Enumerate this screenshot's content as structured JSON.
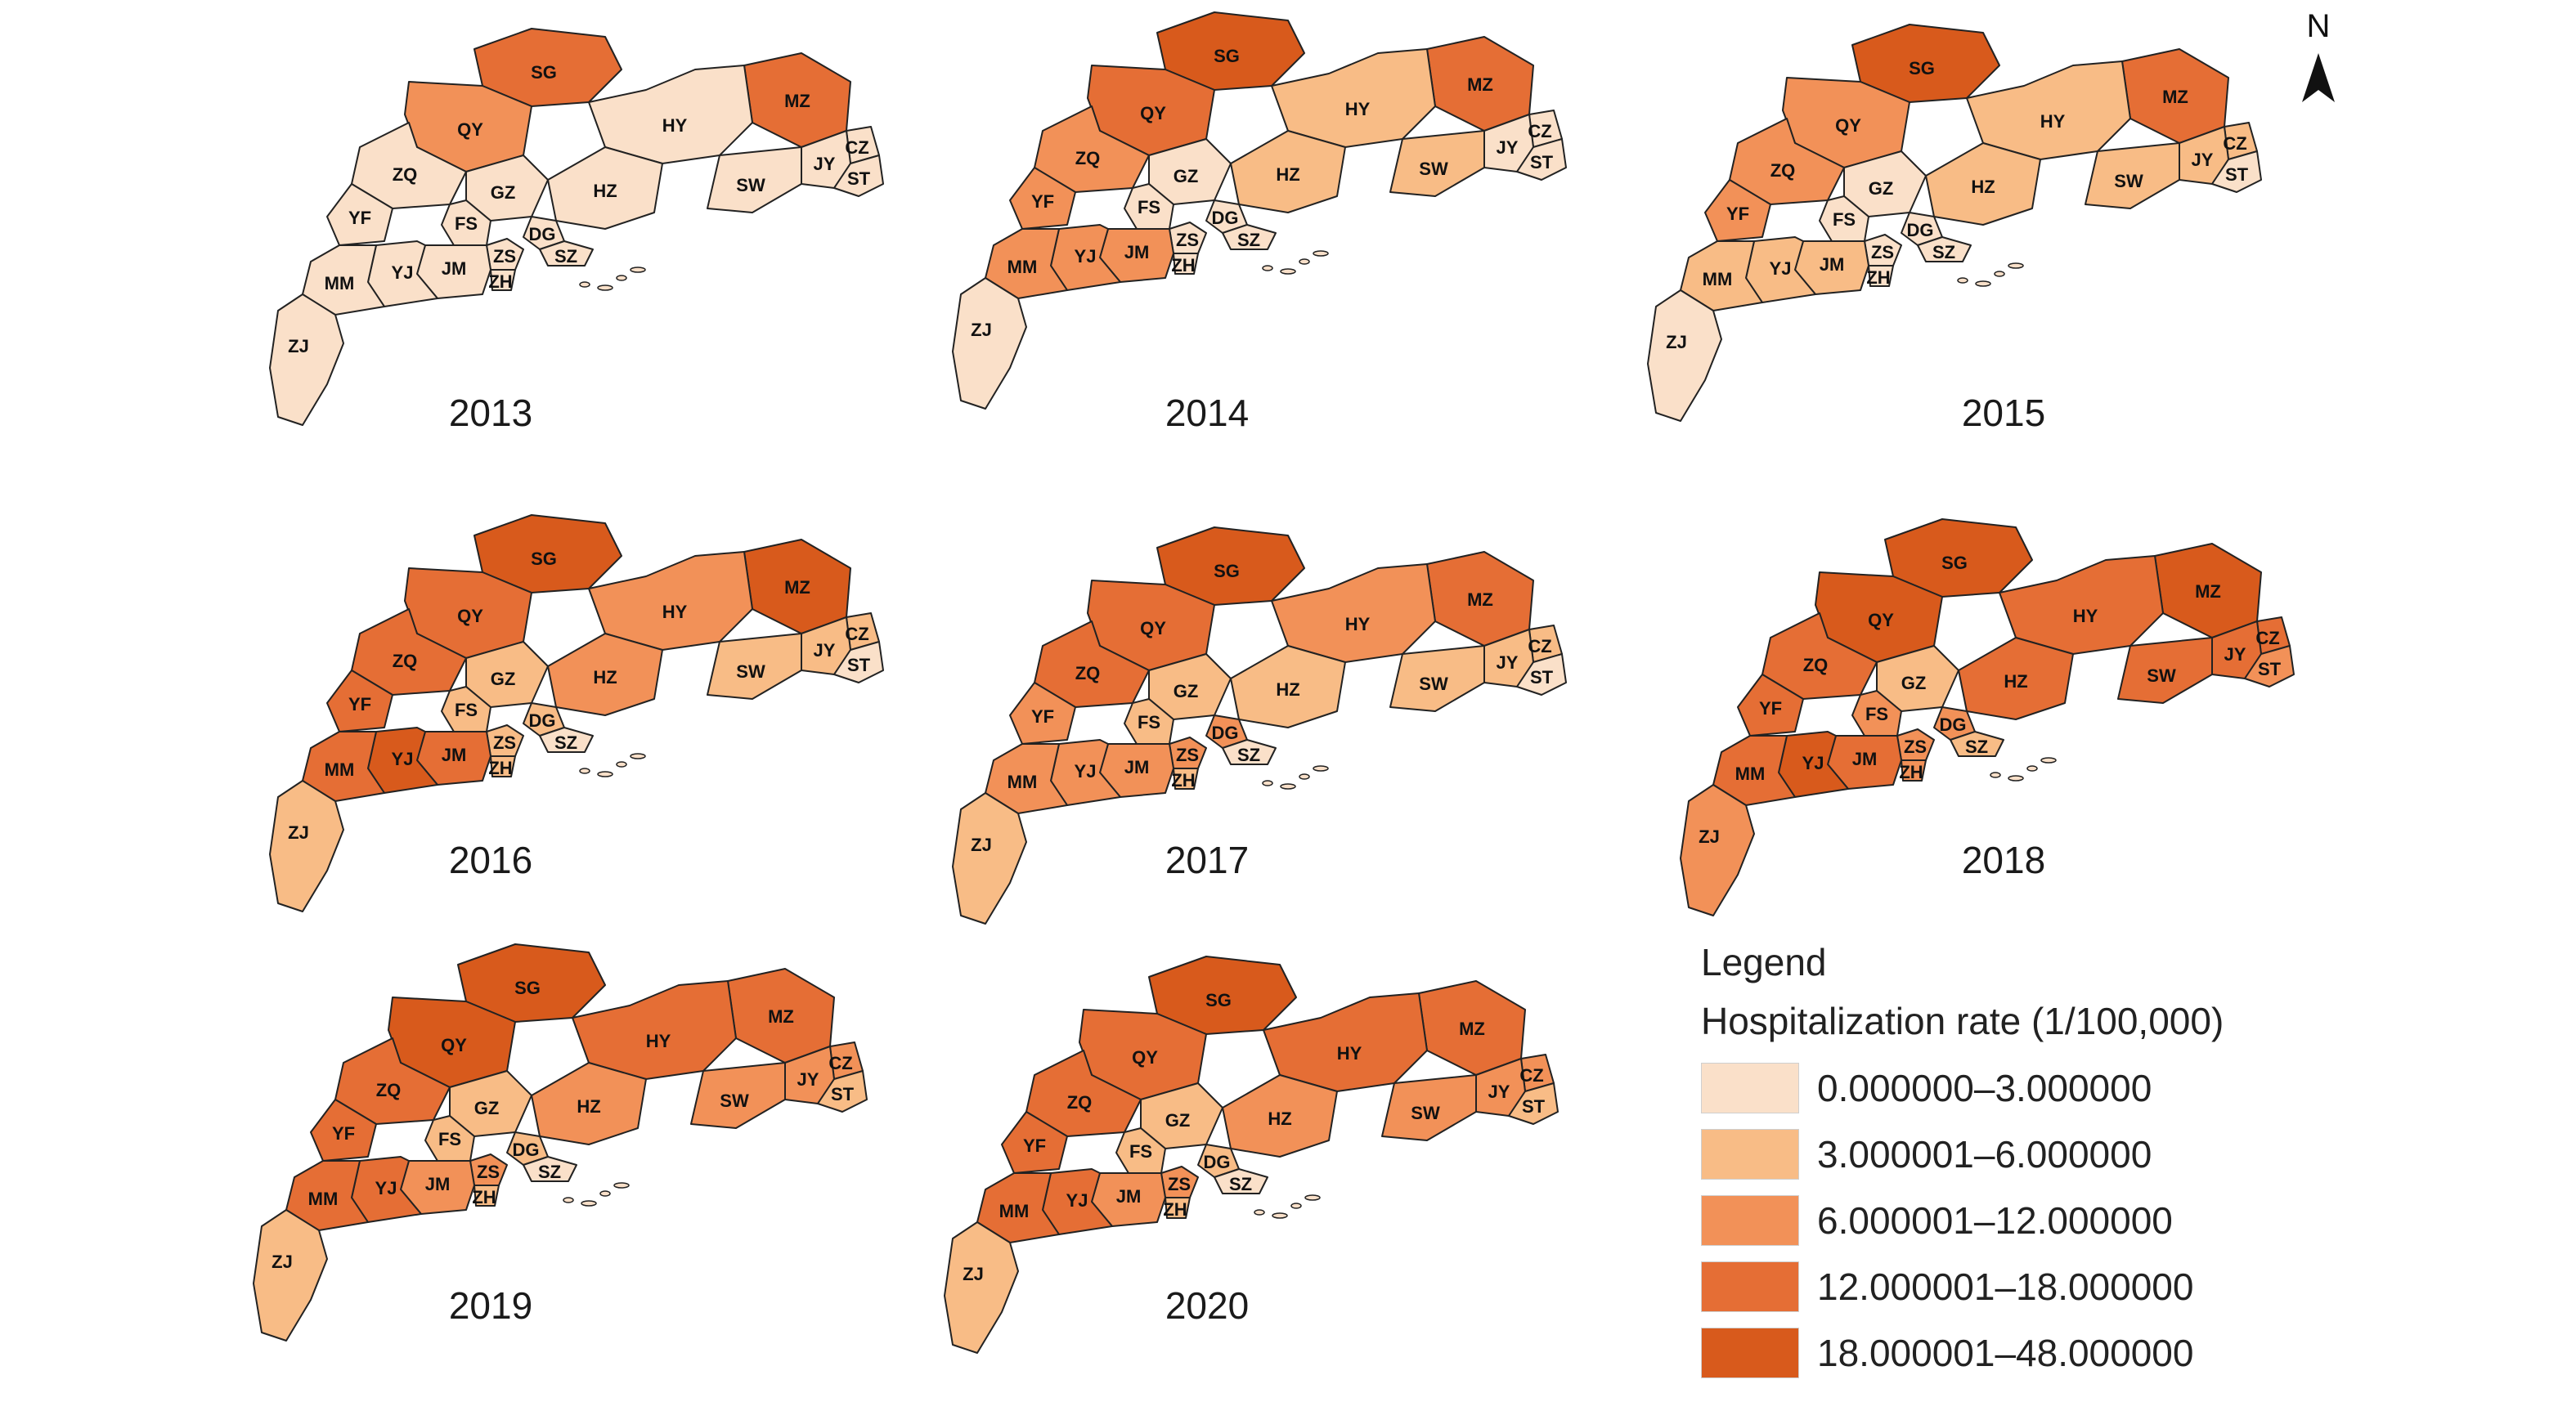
{
  "north_label": "N",
  "legend": {
    "title": "Legend",
    "subtitle": "Hospitalization rate (1/100,000)",
    "classes": [
      {
        "label": "0.000000–3.000000",
        "color": "#fae0c9"
      },
      {
        "label": "3.000001–6.000000",
        "color": "#f8bc86"
      },
      {
        "label": "6.000001–12.000000",
        "color": "#f29158"
      },
      {
        "label": "12.000001–18.000000",
        "color": "#e56e35"
      },
      {
        "label": "18.000001–48.000000",
        "color": "#d85a1c"
      }
    ]
  },
  "city_codes": [
    "SG",
    "QY",
    "MZ",
    "HY",
    "ZQ",
    "GZ",
    "HZ",
    "CZ",
    "JY",
    "ST",
    "SW",
    "YF",
    "FS",
    "DG",
    "SZ",
    "ZS",
    "ZH",
    "JM",
    "YJ",
    "MM",
    "ZJ"
  ],
  "maps": [
    {
      "year": "2013",
      "fills": {
        "SG": 3,
        "QY": 2,
        "MZ": 3,
        "HY": 0,
        "ZQ": 0,
        "GZ": 0,
        "HZ": 0,
        "CZ": 0,
        "JY": 0,
        "ST": 0,
        "SW": 0,
        "YF": 0,
        "FS": 0,
        "DG": 0,
        "SZ": 0,
        "ZS": 0,
        "ZH": 0,
        "JM": 0,
        "YJ": 0,
        "MM": 0,
        "ZJ": 0
      }
    },
    {
      "year": "2014",
      "fills": {
        "SG": 4,
        "QY": 3,
        "MZ": 3,
        "HY": 1,
        "ZQ": 2,
        "GZ": 0,
        "HZ": 1,
        "CZ": 0,
        "JY": 0,
        "ST": 0,
        "SW": 1,
        "YF": 2,
        "FS": 0,
        "DG": 0,
        "SZ": 0,
        "ZS": 0,
        "ZH": 0,
        "JM": 2,
        "YJ": 2,
        "MM": 2,
        "ZJ": 0
      }
    },
    {
      "year": "2015",
      "fills": {
        "SG": 4,
        "QY": 2,
        "MZ": 3,
        "HY": 1,
        "ZQ": 2,
        "GZ": 0,
        "HZ": 1,
        "CZ": 1,
        "JY": 1,
        "ST": 0,
        "SW": 1,
        "YF": 2,
        "FS": 0,
        "DG": 0,
        "SZ": 0,
        "ZS": 0,
        "ZH": 0,
        "JM": 1,
        "YJ": 1,
        "MM": 1,
        "ZJ": 0
      }
    },
    {
      "year": "2016",
      "fills": {
        "SG": 4,
        "QY": 3,
        "MZ": 4,
        "HY": 2,
        "ZQ": 3,
        "GZ": 1,
        "HZ": 2,
        "CZ": 1,
        "JY": 1,
        "ST": 0,
        "SW": 1,
        "YF": 3,
        "FS": 1,
        "DG": 1,
        "SZ": 0,
        "ZS": 1,
        "ZH": 1,
        "JM": 3,
        "YJ": 4,
        "MM": 3,
        "ZJ": 1
      }
    },
    {
      "year": "2017",
      "fills": {
        "SG": 4,
        "QY": 3,
        "MZ": 3,
        "HY": 2,
        "ZQ": 3,
        "GZ": 1,
        "HZ": 1,
        "CZ": 1,
        "JY": 1,
        "ST": 0,
        "SW": 1,
        "YF": 2,
        "FS": 1,
        "DG": 2,
        "SZ": 0,
        "ZS": 2,
        "ZH": 1,
        "JM": 2,
        "YJ": 2,
        "MM": 2,
        "ZJ": 1
      }
    },
    {
      "year": "2018",
      "fills": {
        "SG": 4,
        "QY": 4,
        "MZ": 4,
        "HY": 3,
        "ZQ": 3,
        "GZ": 1,
        "HZ": 3,
        "CZ": 3,
        "JY": 3,
        "ST": 2,
        "SW": 3,
        "YF": 3,
        "FS": 2,
        "DG": 2,
        "SZ": 1,
        "ZS": 2,
        "ZH": 2,
        "JM": 3,
        "YJ": 4,
        "MM": 3,
        "ZJ": 2
      }
    },
    {
      "year": "2019",
      "fills": {
        "SG": 4,
        "QY": 4,
        "MZ": 3,
        "HY": 3,
        "ZQ": 3,
        "GZ": 1,
        "HZ": 2,
        "CZ": 2,
        "JY": 2,
        "ST": 1,
        "SW": 2,
        "YF": 3,
        "FS": 1,
        "DG": 1,
        "SZ": 0,
        "ZS": 2,
        "ZH": 1,
        "JM": 2,
        "YJ": 3,
        "MM": 3,
        "ZJ": 1
      }
    },
    {
      "year": "2020",
      "fills": {
        "SG": 4,
        "QY": 3,
        "MZ": 3,
        "HY": 3,
        "ZQ": 3,
        "GZ": 1,
        "HZ": 2,
        "CZ": 2,
        "JY": 2,
        "ST": 1,
        "SW": 2,
        "YF": 3,
        "FS": 1,
        "DG": 1,
        "SZ": 0,
        "ZS": 2,
        "ZH": 1,
        "JM": 2,
        "YJ": 3,
        "MM": 3,
        "ZJ": 1
      }
    }
  ]
}
